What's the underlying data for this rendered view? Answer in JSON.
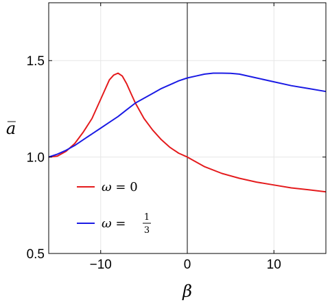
{
  "chart_data": {
    "type": "line",
    "xlabel": "β",
    "ylabel": "a̅",
    "xlim": [
      -16,
      16
    ],
    "ylim": [
      0.5,
      1.8
    ],
    "x_ticks": [
      -10,
      0,
      10
    ],
    "x_tick_labels": [
      "−10",
      "0",
      "10"
    ],
    "y_ticks": [
      0.5,
      1.0,
      1.5
    ],
    "y_tick_labels": [
      "0.5",
      "1.0",
      "1.5"
    ],
    "grid": true,
    "legend_position": "bottom-left",
    "series": [
      {
        "name": "ω = 0",
        "legend_symbol": "ω",
        "legend_value": "0",
        "color": "#e41a1c",
        "x": [
          -16,
          -15,
          -14,
          -13,
          -12,
          -11,
          -10,
          -9,
          -8.5,
          -8,
          -7.5,
          -7,
          -6.5,
          -6,
          -5,
          -4,
          -3,
          -2,
          -1,
          0,
          2,
          4,
          6,
          8,
          10,
          12,
          14,
          16
        ],
        "y": [
          1.0,
          1.005,
          1.03,
          1.07,
          1.13,
          1.2,
          1.3,
          1.4,
          1.425,
          1.435,
          1.42,
          1.38,
          1.33,
          1.28,
          1.2,
          1.14,
          1.09,
          1.05,
          1.02,
          1.0,
          0.95,
          0.915,
          0.89,
          0.87,
          0.855,
          0.84,
          0.83,
          0.82
        ]
      },
      {
        "name": "ω = 1/3",
        "legend_symbol": "ω",
        "legend_fraction": {
          "num": "1",
          "den": "3"
        },
        "color": "#1a1ae4",
        "x": [
          -16,
          -15,
          -14,
          -13,
          -12,
          -11,
          -10,
          -9,
          -8,
          -7,
          -6,
          -5,
          -4,
          -3,
          -2,
          -1,
          0,
          1,
          2,
          3,
          4,
          5,
          6,
          8,
          10,
          12,
          14,
          16
        ],
        "y": [
          1.0,
          1.015,
          1.035,
          1.06,
          1.09,
          1.12,
          1.15,
          1.18,
          1.21,
          1.245,
          1.28,
          1.305,
          1.33,
          1.355,
          1.375,
          1.395,
          1.41,
          1.42,
          1.43,
          1.435,
          1.435,
          1.434,
          1.43,
          1.41,
          1.39,
          1.37,
          1.355,
          1.34
        ]
      }
    ]
  }
}
